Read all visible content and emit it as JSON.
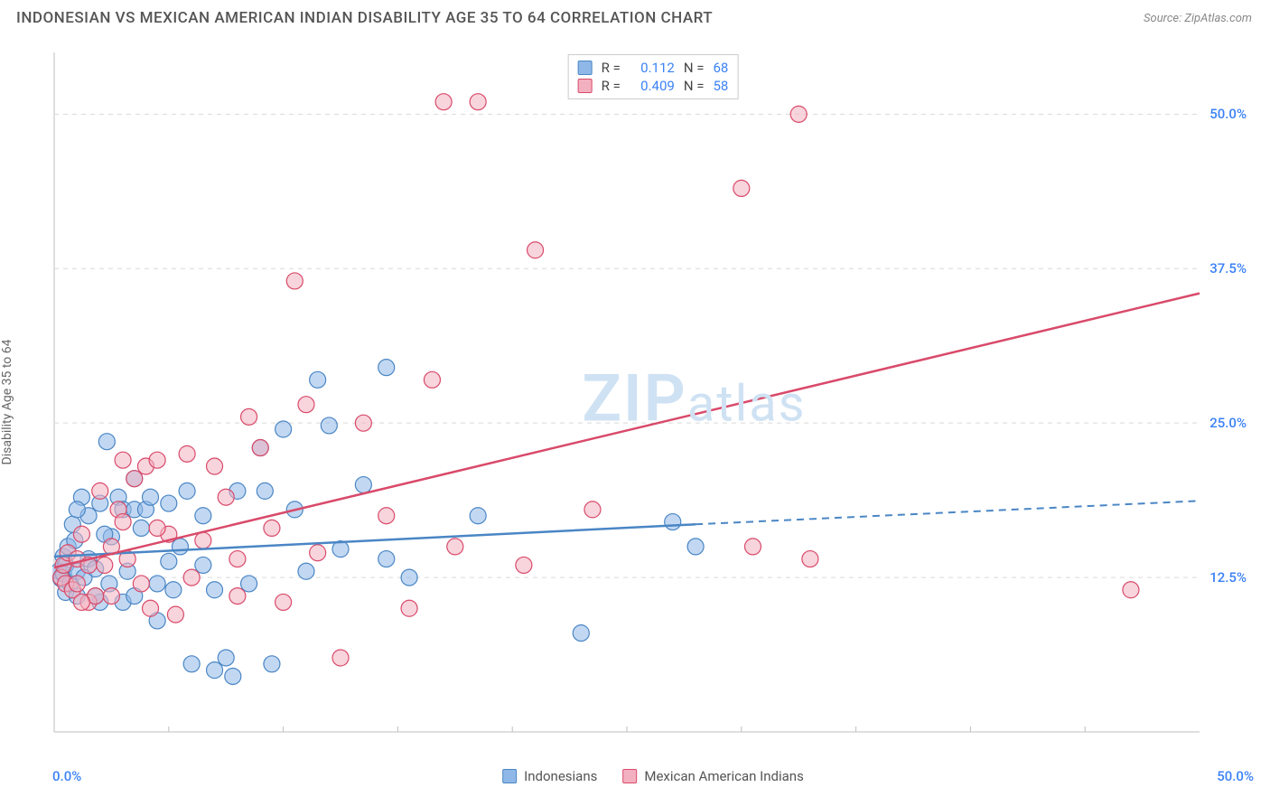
{
  "title": "INDONESIAN VS MEXICAN AMERICAN INDIAN DISABILITY AGE 35 TO 64 CORRELATION CHART",
  "source": "Source: ZipAtlas.com",
  "ylabel": "Disability Age 35 to 64",
  "watermark": "ZIPatlas",
  "chart": {
    "type": "scatter",
    "xlim": [
      0,
      50
    ],
    "ylim": [
      0,
      55
    ],
    "yticks": [
      12.5,
      25.0,
      37.5,
      50.0
    ],
    "ytick_labels": [
      "12.5%",
      "25.0%",
      "37.5%",
      "50.0%"
    ],
    "ytick_color": "#3b82f6",
    "xtick_left": "0.0%",
    "xtick_right": "50.0%",
    "xtick_color": "#3b82f6",
    "grid_color": "#d9d9d9",
    "axis_color": "#bfbfbf",
    "background": "#ffffff",
    "marker_radius": 9,
    "marker_opacity": 0.55,
    "watermark_color": "#cfe2f3",
    "series": [
      {
        "name": "Indonesians",
        "color_fill": "#8fb8e8",
        "color_stroke": "#4a86c5",
        "r_value": "0.112",
        "n_value": "68",
        "trend": {
          "x1": 0,
          "y1": 14.2,
          "x2": 28,
          "y2": 16.8,
          "x_dash_end": 50,
          "y_dash_end": 18.7
        },
        "points": [
          [
            0.2,
            13.0
          ],
          [
            0.3,
            12.4
          ],
          [
            0.4,
            12.8
          ],
          [
            0.4,
            14.2
          ],
          [
            0.5,
            11.3
          ],
          [
            0.5,
            13.5
          ],
          [
            0.6,
            15.0
          ],
          [
            0.7,
            12.0
          ],
          [
            0.8,
            16.8
          ],
          [
            1.0,
            13.0
          ],
          [
            1.0,
            11.0
          ],
          [
            1.2,
            19.0
          ],
          [
            1.3,
            12.5
          ],
          [
            1.5,
            17.5
          ],
          [
            1.5,
            14.0
          ],
          [
            1.8,
            13.2
          ],
          [
            2.0,
            10.5
          ],
          [
            2.0,
            18.5
          ],
          [
            2.3,
            23.5
          ],
          [
            2.4,
            12.0
          ],
          [
            2.5,
            15.8
          ],
          [
            2.8,
            19.0
          ],
          [
            3.0,
            10.5
          ],
          [
            3.0,
            18.0
          ],
          [
            3.2,
            13.0
          ],
          [
            3.5,
            18.0
          ],
          [
            3.5,
            11.0
          ],
          [
            3.8,
            16.5
          ],
          [
            4.0,
            18.0
          ],
          [
            4.2,
            19.0
          ],
          [
            4.5,
            12.0
          ],
          [
            4.5,
            9.0
          ],
          [
            5.0,
            18.5
          ],
          [
            5.2,
            11.5
          ],
          [
            5.5,
            15.0
          ],
          [
            5.8,
            19.5
          ],
          [
            6.0,
            5.5
          ],
          [
            6.5,
            17.5
          ],
          [
            7.0,
            11.5
          ],
          [
            7.0,
            5.0
          ],
          [
            7.5,
            6.0
          ],
          [
            7.8,
            4.5
          ],
          [
            8.0,
            19.5
          ],
          [
            8.5,
            12.0
          ],
          [
            9.0,
            23.0
          ],
          [
            9.2,
            19.5
          ],
          [
            9.5,
            5.5
          ],
          [
            10.0,
            24.5
          ],
          [
            10.5,
            18.0
          ],
          [
            11.0,
            13.0
          ],
          [
            11.5,
            28.5
          ],
          [
            12.0,
            24.8
          ],
          [
            12.5,
            14.8
          ],
          [
            13.5,
            20.0
          ],
          [
            14.5,
            14.0
          ],
          [
            15.5,
            12.5
          ],
          [
            18.5,
            17.5
          ],
          [
            23.0,
            8.0
          ],
          [
            27.0,
            17.0
          ],
          [
            28.0,
            15.0
          ],
          [
            14.5,
            29.5
          ],
          [
            5.0,
            13.8
          ],
          [
            3.5,
            20.5
          ],
          [
            2.2,
            16.0
          ],
          [
            1.0,
            18.0
          ],
          [
            6.5,
            13.5
          ],
          [
            1.8,
            11.0
          ],
          [
            0.9,
            15.5
          ]
        ]
      },
      {
        "name": "Mexican American Indians",
        "color_fill": "#f3b0c0",
        "color_stroke": "#d94a6a",
        "r_value": "0.409",
        "n_value": "58",
        "trend": {
          "x1": 0,
          "y1": 13.3,
          "x2": 50,
          "y2": 35.5,
          "x_dash_end": 50,
          "y_dash_end": 35.5
        },
        "points": [
          [
            0.3,
            12.5
          ],
          [
            0.4,
            13.5
          ],
          [
            0.5,
            12.0
          ],
          [
            0.6,
            14.5
          ],
          [
            0.8,
            11.5
          ],
          [
            1.0,
            14.0
          ],
          [
            1.0,
            12.0
          ],
          [
            1.2,
            16.0
          ],
          [
            1.5,
            10.5
          ],
          [
            1.5,
            13.5
          ],
          [
            1.8,
            11.0
          ],
          [
            2.0,
            19.5
          ],
          [
            2.2,
            13.5
          ],
          [
            2.5,
            11.0
          ],
          [
            2.8,
            18.0
          ],
          [
            3.0,
            22.0
          ],
          [
            3.2,
            14.0
          ],
          [
            3.5,
            20.5
          ],
          [
            3.8,
            12.0
          ],
          [
            4.0,
            21.5
          ],
          [
            4.2,
            10.0
          ],
          [
            4.5,
            22.0
          ],
          [
            5.0,
            16.0
          ],
          [
            5.3,
            9.5
          ],
          [
            5.8,
            22.5
          ],
          [
            6.5,
            15.5
          ],
          [
            7.0,
            21.5
          ],
          [
            7.5,
            19.0
          ],
          [
            8.0,
            11.0
          ],
          [
            8.5,
            25.5
          ],
          [
            9.0,
            23.0
          ],
          [
            9.5,
            16.5
          ],
          [
            10.0,
            10.5
          ],
          [
            10.5,
            36.5
          ],
          [
            11.0,
            26.5
          ],
          [
            11.5,
            14.5
          ],
          [
            12.5,
            6.0
          ],
          [
            13.5,
            25.0
          ],
          [
            14.5,
            17.5
          ],
          [
            15.5,
            10.0
          ],
          [
            16.5,
            28.5
          ],
          [
            17.0,
            51.0
          ],
          [
            17.5,
            15.0
          ],
          [
            18.5,
            51.0
          ],
          [
            20.5,
            13.5
          ],
          [
            21.0,
            39.0
          ],
          [
            30.0,
            44.0
          ],
          [
            32.5,
            50.0
          ],
          [
            33.0,
            14.0
          ],
          [
            30.5,
            15.0
          ],
          [
            47.0,
            11.5
          ],
          [
            23.5,
            18.0
          ],
          [
            8.0,
            14.0
          ],
          [
            6.0,
            12.5
          ],
          [
            4.5,
            16.5
          ],
          [
            2.5,
            15.0
          ],
          [
            1.2,
            10.5
          ],
          [
            3.0,
            17.0
          ]
        ]
      }
    ]
  }
}
